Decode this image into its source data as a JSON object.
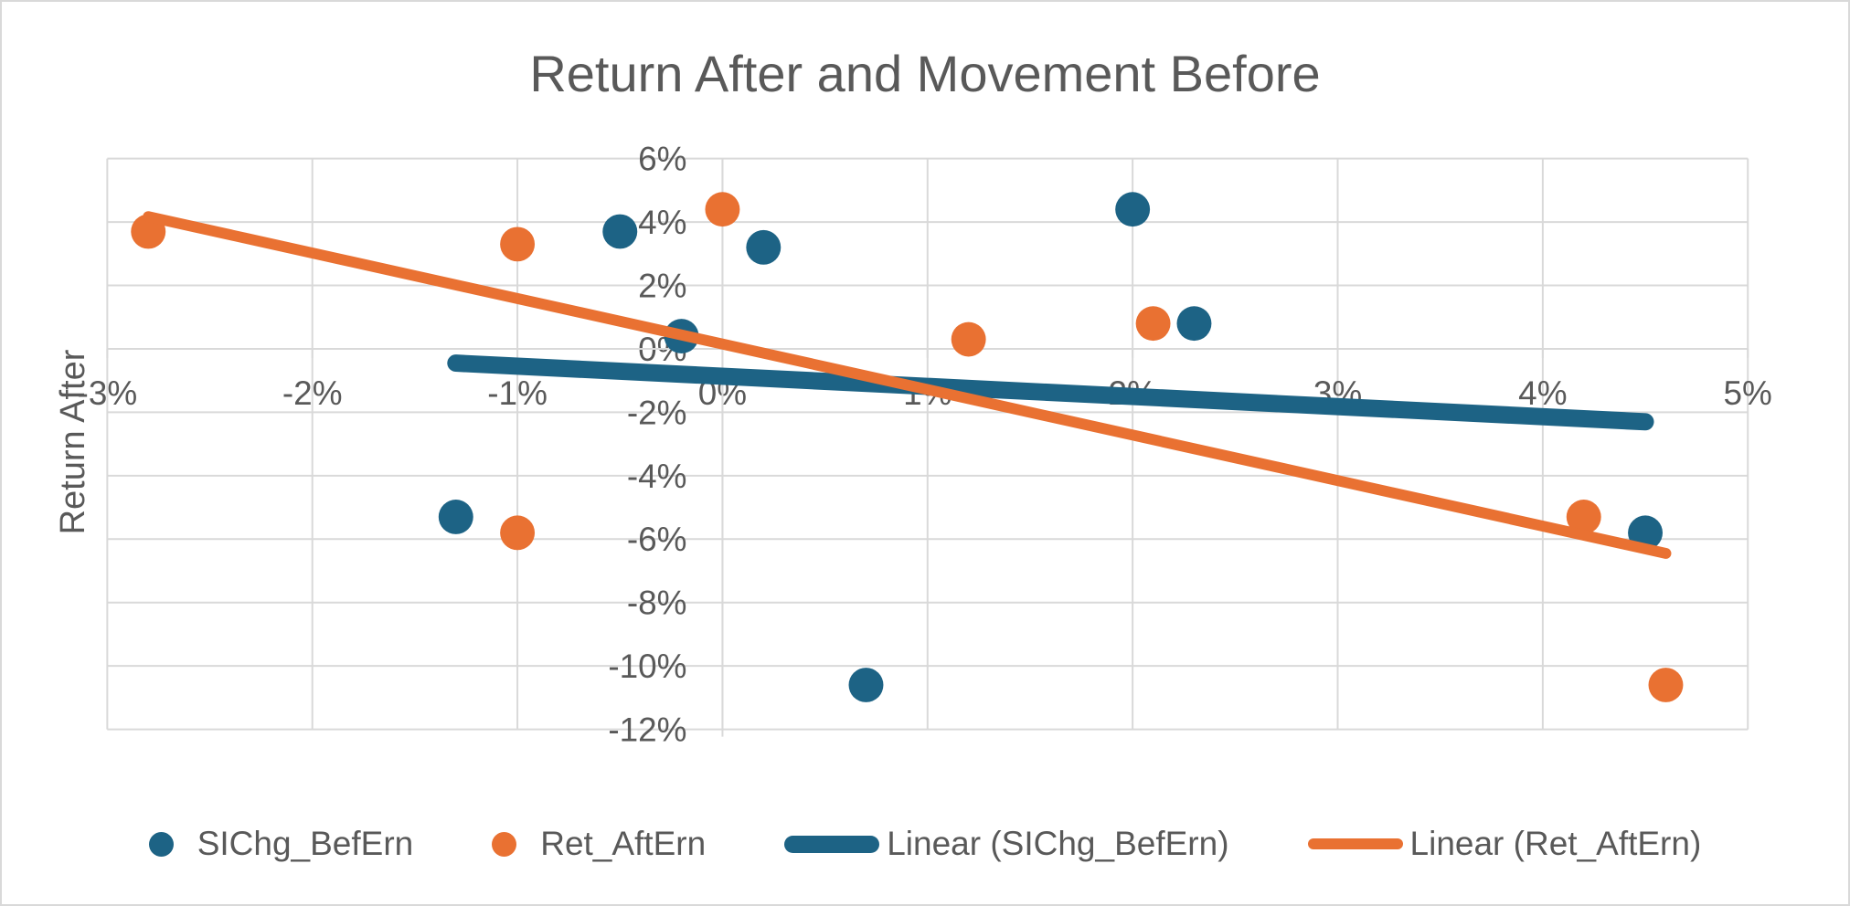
{
  "chart": {
    "title": "Return After and Movement Before",
    "y_axis_title": "Return After"
  },
  "chart_data": {
    "type": "scatter",
    "title": "Return After and Movement Before",
    "xlabel": "",
    "ylabel": "Return After",
    "xlim_pct": [
      -3,
      5
    ],
    "ylim_pct": [
      -12,
      6
    ],
    "x_ticks_pct": [
      -3,
      -2,
      -1,
      0,
      1,
      2,
      3,
      4,
      5
    ],
    "x_tick_labels": [
      "-3%",
      "-2%",
      "-1%",
      "0%",
      "1%",
      "2%",
      "3%",
      "4%",
      "5%"
    ],
    "y_ticks_pct": [
      6,
      4,
      2,
      0,
      -2,
      -4,
      -6,
      -8,
      -10,
      -12
    ],
    "y_tick_labels": [
      "6%",
      "4%",
      "2%",
      "0%",
      "-2%",
      "-4%",
      "-6%",
      "-8%",
      "-10%",
      "-12%"
    ],
    "grid": true,
    "legend_position": "bottom",
    "colors": {
      "series1": "#1d6385",
      "series2": "#e97132",
      "gridline": "#d9d9d9",
      "text": "#595959"
    },
    "series": [
      {
        "name": "SIChg_BefErn",
        "color": "#1d6385",
        "marker": "circle",
        "points_pct": [
          [
            -1.3,
            -5.3
          ],
          [
            -0.5,
            3.7
          ],
          [
            -0.2,
            0.4
          ],
          [
            0.2,
            3.2
          ],
          [
            0.7,
            -10.6
          ],
          [
            2.0,
            4.4
          ],
          [
            2.3,
            0.8
          ],
          [
            4.5,
            -5.8
          ]
        ]
      },
      {
        "name": "Ret_AftErn",
        "color": "#e97132",
        "marker": "circle",
        "points_pct": [
          [
            -2.8,
            3.7
          ],
          [
            -1.0,
            3.3
          ],
          [
            -1.0,
            -5.8
          ],
          [
            0.0,
            4.4
          ],
          [
            1.2,
            0.3
          ],
          [
            2.1,
            0.8
          ],
          [
            4.2,
            -5.3
          ],
          [
            4.6,
            -10.6
          ]
        ]
      }
    ],
    "trendlines": [
      {
        "name": "Linear (SIChg_BefErn)",
        "color": "#1d6385",
        "stroke_width": 19,
        "start_pct": [
          -1.3,
          -0.45
        ],
        "end_pct": [
          4.5,
          -2.3
        ]
      },
      {
        "name": "Linear (Ret_AftErn)",
        "color": "#e97132",
        "stroke_width": 12,
        "start_pct": [
          -2.8,
          4.17
        ],
        "end_pct": [
          4.6,
          -6.45
        ]
      }
    ],
    "legend_items": [
      {
        "label": "SIChg_BefErn",
        "marker": "dot",
        "color": "#1d6385",
        "line_height": 0
      },
      {
        "label": "Ret_AftErn",
        "marker": "dot",
        "color": "#e97132",
        "line_height": 0
      },
      {
        "label": "Linear (SIChg_BefErn)",
        "marker": "line",
        "color": "#1d6385",
        "line_height": 19
      },
      {
        "label": "Linear (Ret_AftErn)",
        "marker": "line",
        "color": "#e97132",
        "line_height": 12
      }
    ]
  }
}
